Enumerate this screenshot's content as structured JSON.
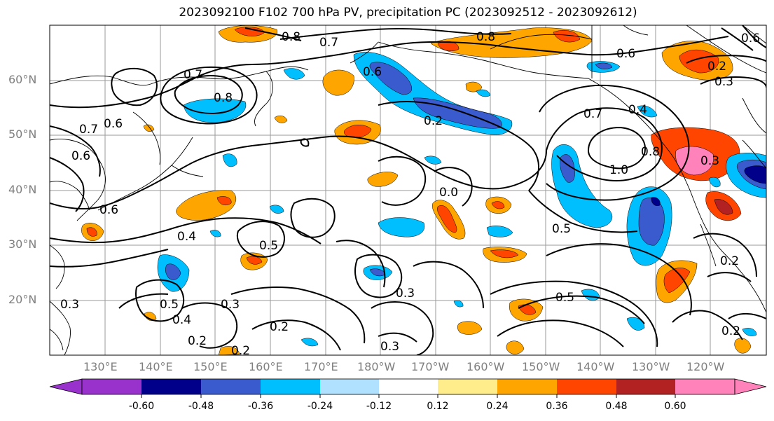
{
  "title": "2023092100 F102 700 hPa PV, precipitation PC (2023092512 - 2023092612)",
  "latitude_labels": [
    "60°N",
    "50°N",
    "40°N",
    "30°N",
    "20°N"
  ],
  "longitude_labels": [
    "130°E",
    "140°E",
    "150°E",
    "160°E",
    "170°E",
    "180°W",
    "170°W",
    "160°W",
    "150°W",
    "140°W",
    "130°W",
    "120°W"
  ],
  "colorbar": {
    "colors": [
      "#9932cc",
      "#00008b",
      "#3a5bcd",
      "#00bfff",
      "#b0e2ff",
      "#ffffff",
      "#ffec8b",
      "#ffa500",
      "#ff4500",
      "#b22222",
      "#ff83ba"
    ],
    "tick_labels": [
      "-0.60",
      "-0.48",
      "-0.36",
      "-0.24",
      "-0.12",
      "0.12",
      "0.24",
      "0.36",
      "0.48",
      "0.60"
    ]
  },
  "contour_labels": [
    {
      "text": "0.8"
    },
    {
      "text": "0.7"
    },
    {
      "text": "0.8"
    },
    {
      "text": "0.6"
    },
    {
      "text": "0.6"
    },
    {
      "text": "0.7"
    },
    {
      "text": "0.8"
    },
    {
      "text": "0.7"
    },
    {
      "text": "0.6"
    },
    {
      "text": "0.6"
    },
    {
      "text": "0.2"
    },
    {
      "text": "0.7"
    },
    {
      "text": "0.4"
    },
    {
      "text": "0.8"
    },
    {
      "text": "1.0"
    },
    {
      "text": "0.3"
    },
    {
      "text": "0.6"
    },
    {
      "text": "0.4"
    },
    {
      "text": "0.5"
    },
    {
      "text": "0.0"
    },
    {
      "text": "0.5"
    },
    {
      "text": "0.3"
    },
    {
      "text": "0.3"
    },
    {
      "text": "0.5"
    },
    {
      "text": "0.4"
    },
    {
      "text": "0.3"
    },
    {
      "text": "0.2"
    },
    {
      "text": "0.2"
    },
    {
      "text": "0.5"
    },
    {
      "text": "0.2"
    },
    {
      "text": "0.2"
    },
    {
      "text": "0.2"
    },
    {
      "text": "0.3"
    },
    {
      "text": "0.2"
    },
    {
      "text": "0.3"
    },
    {
      "text": "0.6"
    }
  ]
}
